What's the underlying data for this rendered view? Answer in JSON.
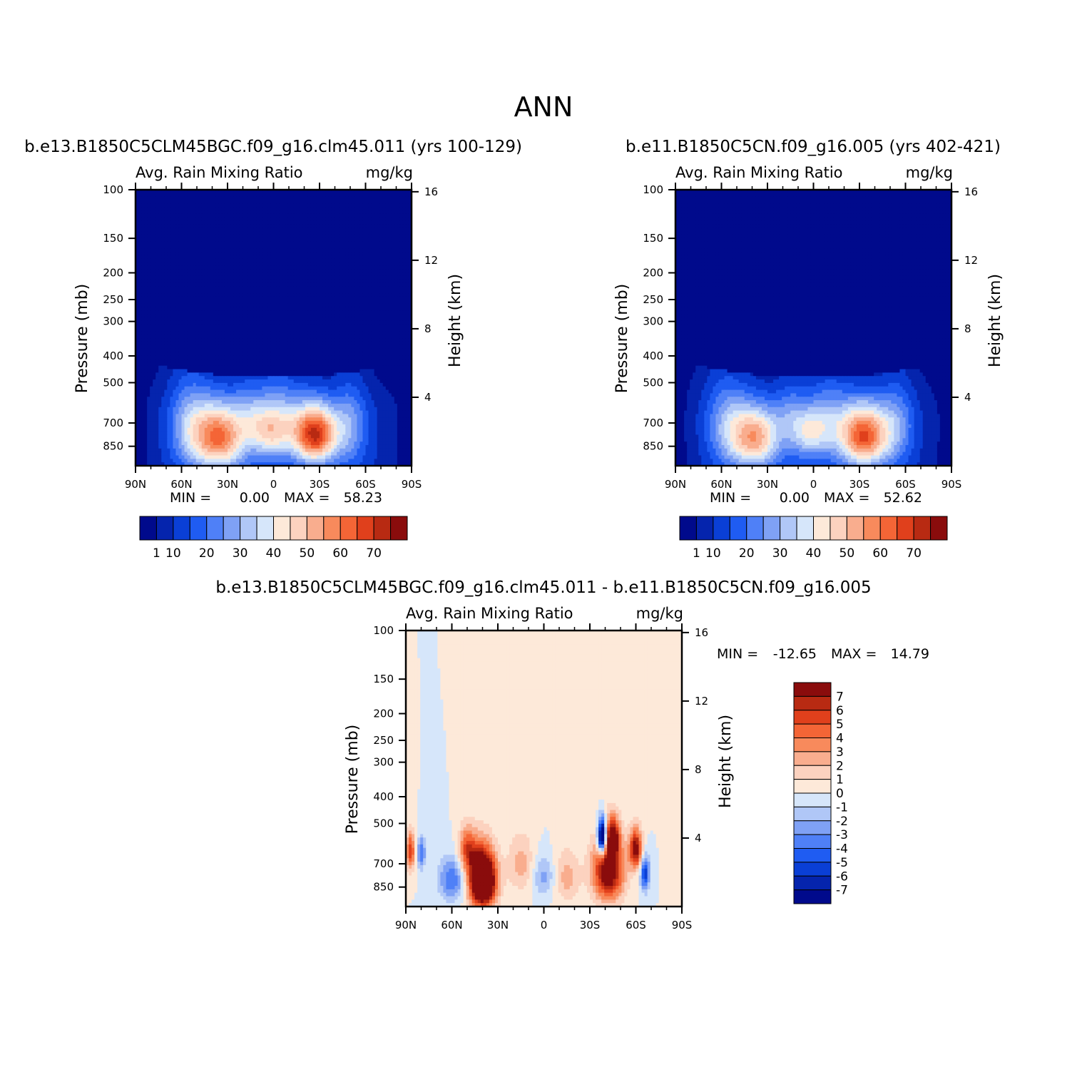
{
  "figure": {
    "title": "ANN"
  },
  "chart_data": [
    {
      "type": "heatmap",
      "title": "b.e13.B1850C5CLM45BGC.f09_g16.clm45.011 (yrs 100-129)",
      "subtitle_left": "Avg. Rain Mixing Ratio",
      "subtitle_right": "mg/kg",
      "xlabel": "",
      "ylabel": "Pressure (mb)",
      "ylabel_right": "Height (km)",
      "x_ticks": [
        "90N",
        "60N",
        "30N",
        "0",
        "30S",
        "60S",
        "90S"
      ],
      "x_tick_values": [
        90,
        60,
        30,
        0,
        -30,
        -60,
        -90
      ],
      "y_ticks": [
        100,
        150,
        200,
        250,
        300,
        400,
        500,
        700,
        850
      ],
      "y_scale": "log",
      "ylim": [
        100,
        1000
      ],
      "height_ticks": [
        4,
        8,
        12,
        16
      ],
      "min_label": "MIN =",
      "min_value": "0.00",
      "max_label": "MAX =",
      "max_value": "58.23",
      "colorbar_labels": [
        "1",
        "10",
        "20",
        "30",
        "40",
        "50",
        "60",
        "70"
      ],
      "colorbar_colors": [
        "#000a8c",
        "#0524ad",
        "#0a3fd6",
        "#1f5cf2",
        "#4f80f7",
        "#7fa1f5",
        "#b0c7f7",
        "#d6e6fa",
        "#fde9d9",
        "#fcd2bf",
        "#f9ad8e",
        "#f88a5c",
        "#f46536",
        "#e0401c",
        "#b82a12",
        "#8a0c0c"
      ],
      "features": [
        {
          "lat": 35,
          "p": 790,
          "peak": 47,
          "sx": 12,
          "sp": 150
        },
        {
          "lat": -27,
          "p": 770,
          "peak": 58.23,
          "sx": 10,
          "sp": 130
        },
        {
          "lat": 55,
          "p": 700,
          "peak": 18,
          "sx": 10,
          "sp": 200
        },
        {
          "lat": 3,
          "p": 760,
          "peak": 24,
          "sx": 9,
          "sp": 110
        },
        {
          "lat": -5,
          "p": 640,
          "peak": 16,
          "sx": 10,
          "sp": 160
        },
        {
          "lat": -50,
          "p": 700,
          "peak": 15,
          "sx": 8,
          "sp": 180
        },
        {
          "lat": 15,
          "p": 620,
          "peak": 12,
          "sx": 8,
          "sp": 120
        }
      ]
    },
    {
      "type": "heatmap",
      "title": "b.e11.B1850C5CN.f09_g16.005 (yrs 402-421)",
      "subtitle_left": "Avg. Rain Mixing Ratio",
      "subtitle_right": "mg/kg",
      "xlabel": "",
      "ylabel": "Pressure (mb)",
      "ylabel_right": "Height (km)",
      "x_ticks": [
        "90N",
        "60N",
        "30N",
        "0",
        "30S",
        "60S",
        "90S"
      ],
      "x_tick_values": [
        90,
        60,
        30,
        0,
        -30,
        -60,
        -90
      ],
      "y_ticks": [
        100,
        150,
        200,
        250,
        300,
        400,
        500,
        700,
        850
      ],
      "y_scale": "log",
      "ylim": [
        100,
        1000
      ],
      "height_ticks": [
        4,
        8,
        12,
        16
      ],
      "min_label": "MIN =",
      "min_value": "0.00",
      "max_label": "MAX =",
      "max_value": "52.62",
      "colorbar_labels": [
        "1",
        "10",
        "20",
        "30",
        "40",
        "50",
        "60",
        "70"
      ],
      "colorbar_colors": [
        "#000a8c",
        "#0524ad",
        "#0a3fd6",
        "#1f5cf2",
        "#4f80f7",
        "#7fa1f5",
        "#b0c7f7",
        "#d6e6fa",
        "#fde9d9",
        "#fcd2bf",
        "#f9ad8e",
        "#f88a5c",
        "#f46536",
        "#e0401c",
        "#b82a12",
        "#8a0c0c"
      ],
      "features": [
        {
          "lat": 38,
          "p": 790,
          "peak": 40,
          "sx": 11,
          "sp": 140
        },
        {
          "lat": -33,
          "p": 780,
          "peak": 52.62,
          "sx": 11,
          "sp": 140
        },
        {
          "lat": 57,
          "p": 700,
          "peak": 17,
          "sx": 10,
          "sp": 200
        },
        {
          "lat": 3,
          "p": 760,
          "peak": 22,
          "sx": 9,
          "sp": 110
        },
        {
          "lat": -10,
          "p": 650,
          "peak": 15,
          "sx": 10,
          "sp": 160
        },
        {
          "lat": -55,
          "p": 700,
          "peak": 14,
          "sx": 8,
          "sp": 180
        },
        {
          "lat": 15,
          "p": 620,
          "peak": 11,
          "sx": 8,
          "sp": 120
        }
      ]
    },
    {
      "type": "heatmap",
      "title": "b.e13.B1850C5CLM45BGC.f09_g16.clm45.011 - b.e11.B1850C5CN.f09_g16.005",
      "subtitle_left": "Avg. Rain Mixing Ratio",
      "subtitle_right": "mg/kg",
      "xlabel": "",
      "ylabel": "Pressure (mb)",
      "ylabel_right": "Height (km)",
      "x_ticks": [
        "90N",
        "60N",
        "30N",
        "0",
        "30S",
        "60S",
        "90S"
      ],
      "x_tick_values": [
        90,
        60,
        30,
        0,
        -30,
        -60,
        -90
      ],
      "y_ticks": [
        100,
        150,
        200,
        250,
        300,
        400,
        500,
        700,
        850
      ],
      "y_scale": "log",
      "ylim": [
        100,
        1000
      ],
      "height_ticks": [
        4,
        8,
        12,
        16
      ],
      "min_label": "MIN =",
      "min_value": "-12.65",
      "max_label": "MAX =",
      "max_value": "14.79",
      "colorbar_labels": [
        "7",
        "6",
        "5",
        "4",
        "3",
        "2",
        "1",
        "0",
        "-1",
        "-2",
        "-3",
        "-4",
        "-5",
        "-6",
        "-7"
      ],
      "colorbar_colors": [
        "#8a0c0c",
        "#b82a12",
        "#e0401c",
        "#f46536",
        "#f88a5c",
        "#f9ad8e",
        "#fcd2bf",
        "#fde9d9",
        "#d6e6fa",
        "#b0c7f7",
        "#7fa1f5",
        "#4f80f7",
        "#1f5cf2",
        "#0a3fd6",
        "#0524ad",
        "#000a8c"
      ],
      "features": [
        {
          "lat": 40,
          "p": 800,
          "peak": 14.79,
          "sx": 6,
          "sp": 130
        },
        {
          "lat": -42,
          "p": 740,
          "peak": 9,
          "sx": 7,
          "sp": 140
        },
        {
          "lat": -45,
          "p": 560,
          "peak": 7,
          "sx": 3,
          "sp": 60
        },
        {
          "lat": -38,
          "p": 560,
          "peak": -12.65,
          "sx": 2,
          "sp": 60
        },
        {
          "lat": -60,
          "p": 620,
          "peak": 8,
          "sx": 3,
          "sp": 70
        },
        {
          "lat": -66,
          "p": 760,
          "peak": -6,
          "sx": 2,
          "sp": 80
        },
        {
          "lat": 60,
          "p": 800,
          "peak": -4,
          "sx": 6,
          "sp": 100
        },
        {
          "lat": 0,
          "p": 780,
          "peak": -2.5,
          "sx": 5,
          "sp": 90
        },
        {
          "lat": 87,
          "p": 630,
          "peak": 6,
          "sx": 2,
          "sp": 70
        },
        {
          "lat": 80,
          "p": 640,
          "peak": -4,
          "sx": 2,
          "sp": 60
        },
        {
          "lat": 50,
          "p": 620,
          "peak": 5,
          "sx": 4,
          "sp": 80
        },
        {
          "lat": 15,
          "p": 700,
          "peak": 2.5,
          "sx": 6,
          "sp": 120
        },
        {
          "lat": -15,
          "p": 780,
          "peak": 2.5,
          "sx": 6,
          "sp": 120
        }
      ]
    }
  ]
}
